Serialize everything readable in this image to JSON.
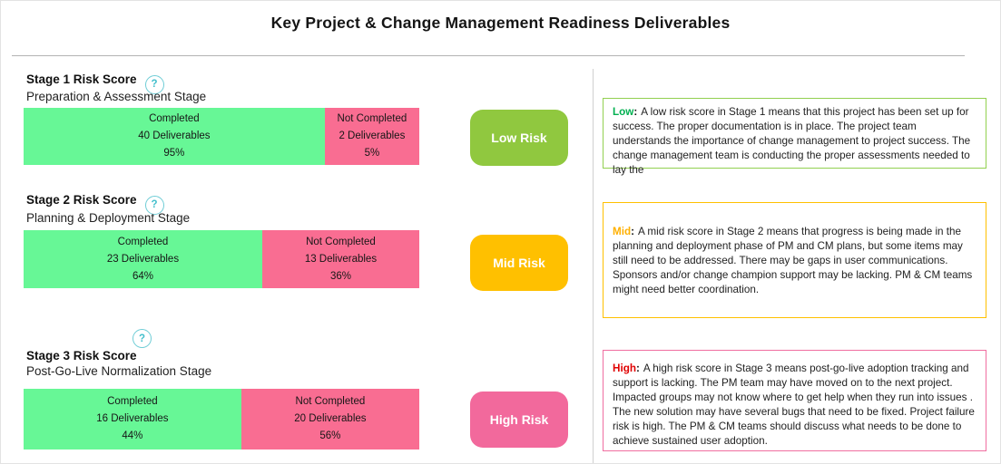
{
  "title": "Key Project & Change Management Readiness Deliverables",
  "icons": {
    "help": "?"
  },
  "notes_separator": ":",
  "stages": [
    {
      "name": "Stage 1 Risk Score",
      "subtitle": "Preparation & Assessment Stage",
      "completed_label": "Completed",
      "completed_deliverables": "40 Deliverables",
      "completed_pct": "95%",
      "not_completed_label": "Not Completed",
      "not_completed_deliverables": "2 Deliverables",
      "not_completed_pct": "5%",
      "green_width": "76.1%"
    },
    {
      "name": "Stage 2 Risk Score",
      "subtitle": "Planning & Deployment Stage",
      "completed_label": "Completed",
      "completed_deliverables": "23 Deliverables",
      "completed_pct": "64%",
      "not_completed_label": "Not Completed",
      "not_completed_deliverables": "13 Deliverables",
      "not_completed_pct": "36%",
      "green_width": "60.3%"
    },
    {
      "name": "Stage 3 Risk Score",
      "subtitle": "Post-Go-Live Normalization Stage",
      "completed_label": "Completed",
      "completed_deliverables": "16 Deliverables",
      "completed_pct": "44%",
      "not_completed_label": "Not Completed",
      "not_completed_deliverables": "20 Deliverables",
      "not_completed_pct": "56%",
      "green_width": "55.0%"
    }
  ],
  "colors": {
    "completed_fill": "#67F796",
    "not_completed_fill": "#F96D92"
  },
  "badges": [
    {
      "label": "Low Risk",
      "color": "#90C83F"
    },
    {
      "label": "Mid Risk",
      "color": "#FFC000"
    },
    {
      "label": "High Risk",
      "color": "#F2699C"
    }
  ],
  "notes": [
    {
      "lead": "Low",
      "lead_color": "#00B050",
      "border_color": "#92D050",
      "body": "A low risk score in Stage 1 means that this project has been set up for success. The proper documentation is in place. The project team understands the importance of change management to project success. The change management team is conducting the proper assessments needed to lay the"
    },
    {
      "lead": "Mid",
      "lead_color": "#FFB000",
      "border_color": "#FFC000",
      "body": "A mid risk score in Stage 2 means that progress is being made in the planning and deployment phase of PM and CM plans, but some items may still need to be addressed. There may be gaps in user communications. Sponsors and/or change champion support may be lacking. PM & CM teams might need better coordination."
    },
    {
      "lead": "High",
      "lead_color": "#E00000",
      "border_color": "#F06EA0",
      "body": "A high risk score in Stage 3 means post-go-live adoption tracking and support is lacking. The PM team may have moved on to the next project. Impacted groups may not know where to get help when they run into issues . The new solution may have several bugs that need to be fixed. Project failure risk is high. The PM & CM teams should discuss what needs to be done to achieve sustained user adoption."
    }
  ],
  "chart_data": {
    "type": "bar",
    "subtype": "stacked-horizontal",
    "title": "Key Project & Change Management Readiness Deliverables",
    "categories": [
      "Stage 1: Preparation & Assessment Stage",
      "Stage 2: Planning & Deployment Stage",
      "Stage 3: Post-Go-Live Normalization Stage"
    ],
    "series": [
      {
        "name": "Completed",
        "values": [
          40,
          23,
          16
        ],
        "pct": [
          95,
          64,
          44
        ],
        "color": "#67F796"
      },
      {
        "name": "Not Completed",
        "values": [
          2,
          13,
          20
        ],
        "pct": [
          5,
          36,
          56
        ],
        "color": "#F96D92"
      }
    ],
    "risk_levels": [
      "Low Risk",
      "Mid Risk",
      "High Risk"
    ],
    "legend_position": "none",
    "grid": false,
    "value_labels_shown": true
  }
}
